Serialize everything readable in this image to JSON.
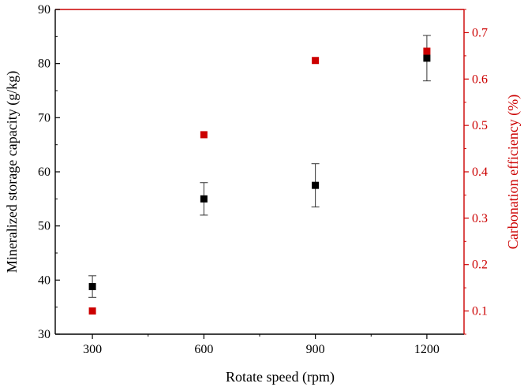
{
  "chart_data": {
    "type": "scatter",
    "title": "",
    "xlabel": "Rotate speed (rpm)",
    "ylabel_left": "Mineralized storage capacity (g/kg)",
    "ylabel_right": "Carbonation efficiency (%)",
    "x_categories": [
      "300",
      "600",
      "900",
      "1200"
    ],
    "x_values": [
      300,
      600,
      900,
      1200
    ],
    "xlim": [
      200,
      1300
    ],
    "ylim_left": [
      30,
      90
    ],
    "ylim_right": [
      0.05,
      0.75
    ],
    "yticks_left": [
      "30",
      "40",
      "50",
      "60",
      "70",
      "80",
      "90"
    ],
    "yticks_right": [
      "0.1",
      "0.2",
      "0.3",
      "0.4",
      "0.5",
      "0.6",
      "0.7"
    ],
    "grid": false,
    "series": [
      {
        "axis": "left",
        "color": "#000000",
        "marker": "square",
        "x": [
          300,
          600,
          900,
          1200
        ],
        "y": [
          38.8,
          55.0,
          57.5,
          81.0
        ],
        "error": [
          2.0,
          3.0,
          4.0,
          4.2
        ]
      },
      {
        "axis": "right",
        "color": "#cc0000",
        "marker": "square",
        "x": [
          300,
          600,
          900,
          1200
        ],
        "y": [
          0.1,
          0.48,
          0.64,
          0.66
        ]
      }
    ],
    "colors": {
      "left_axis": "#000000",
      "right_axis": "#cc0000"
    }
  }
}
